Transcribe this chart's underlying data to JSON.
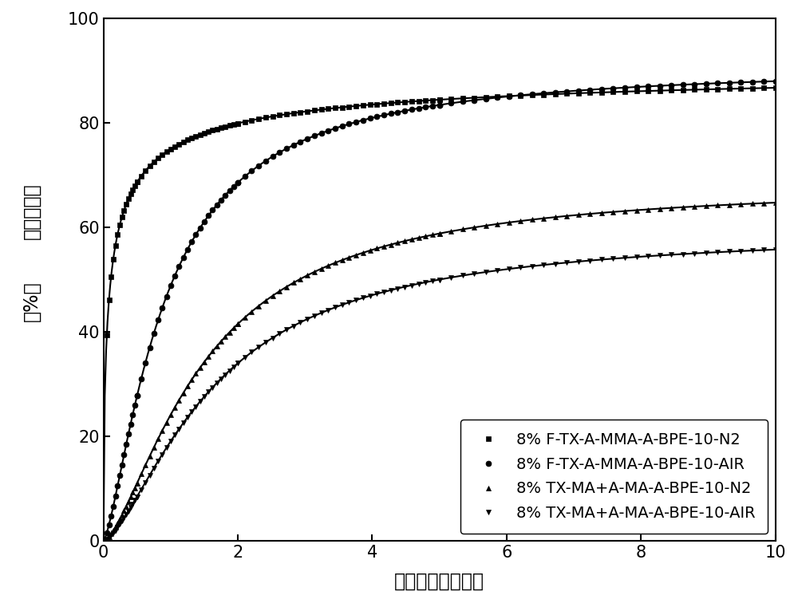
{
  "series": [
    {
      "label": "8% F-TX-A-MMA-A-BPE-10-N2",
      "marker": "s",
      "color": "#000000",
      "curve": {
        "type": "hill",
        "Vmax": 91.5,
        "K": 0.35,
        "n": 1.8
      }
    },
    {
      "label": "8% F-TX-A-MMA-A-BPE-10-AIR",
      "marker": "o",
      "color": "#000000",
      "curve": {
        "type": "hill",
        "Vmax": 91.0,
        "K": 1.2,
        "n": 1.8
      }
    },
    {
      "label": "8% TX-MA+A-MA-A-BPE-10-N2",
      "marker": "^",
      "color": "#000000",
      "curve": {
        "type": "hill",
        "Vmax": 68.5,
        "K": 1.5,
        "n": 1.5
      }
    },
    {
      "label": "8% TX-MA+A-MA-A-BPE-10-AIR",
      "marker": "v",
      "color": "#000000",
      "curve": {
        "type": "hill",
        "Vmax": 59.5,
        "K": 1.6,
        "n": 1.5
      }
    }
  ],
  "xlabel": "光照时间（分钟）",
  "ylabel_top": "双键转化率",
  "ylabel_bot": "（%）",
  "xlim": [
    0,
    10
  ],
  "ylim": [
    0,
    100
  ],
  "xticks": [
    0,
    2,
    4,
    6,
    8,
    10
  ],
  "yticks": [
    0,
    20,
    40,
    60,
    80,
    100
  ],
  "legend_loc": "lower right",
  "background_color": "#ffffff",
  "font_size": 15,
  "marker_size": 5,
  "line_width": 1.5,
  "n_points": 120
}
